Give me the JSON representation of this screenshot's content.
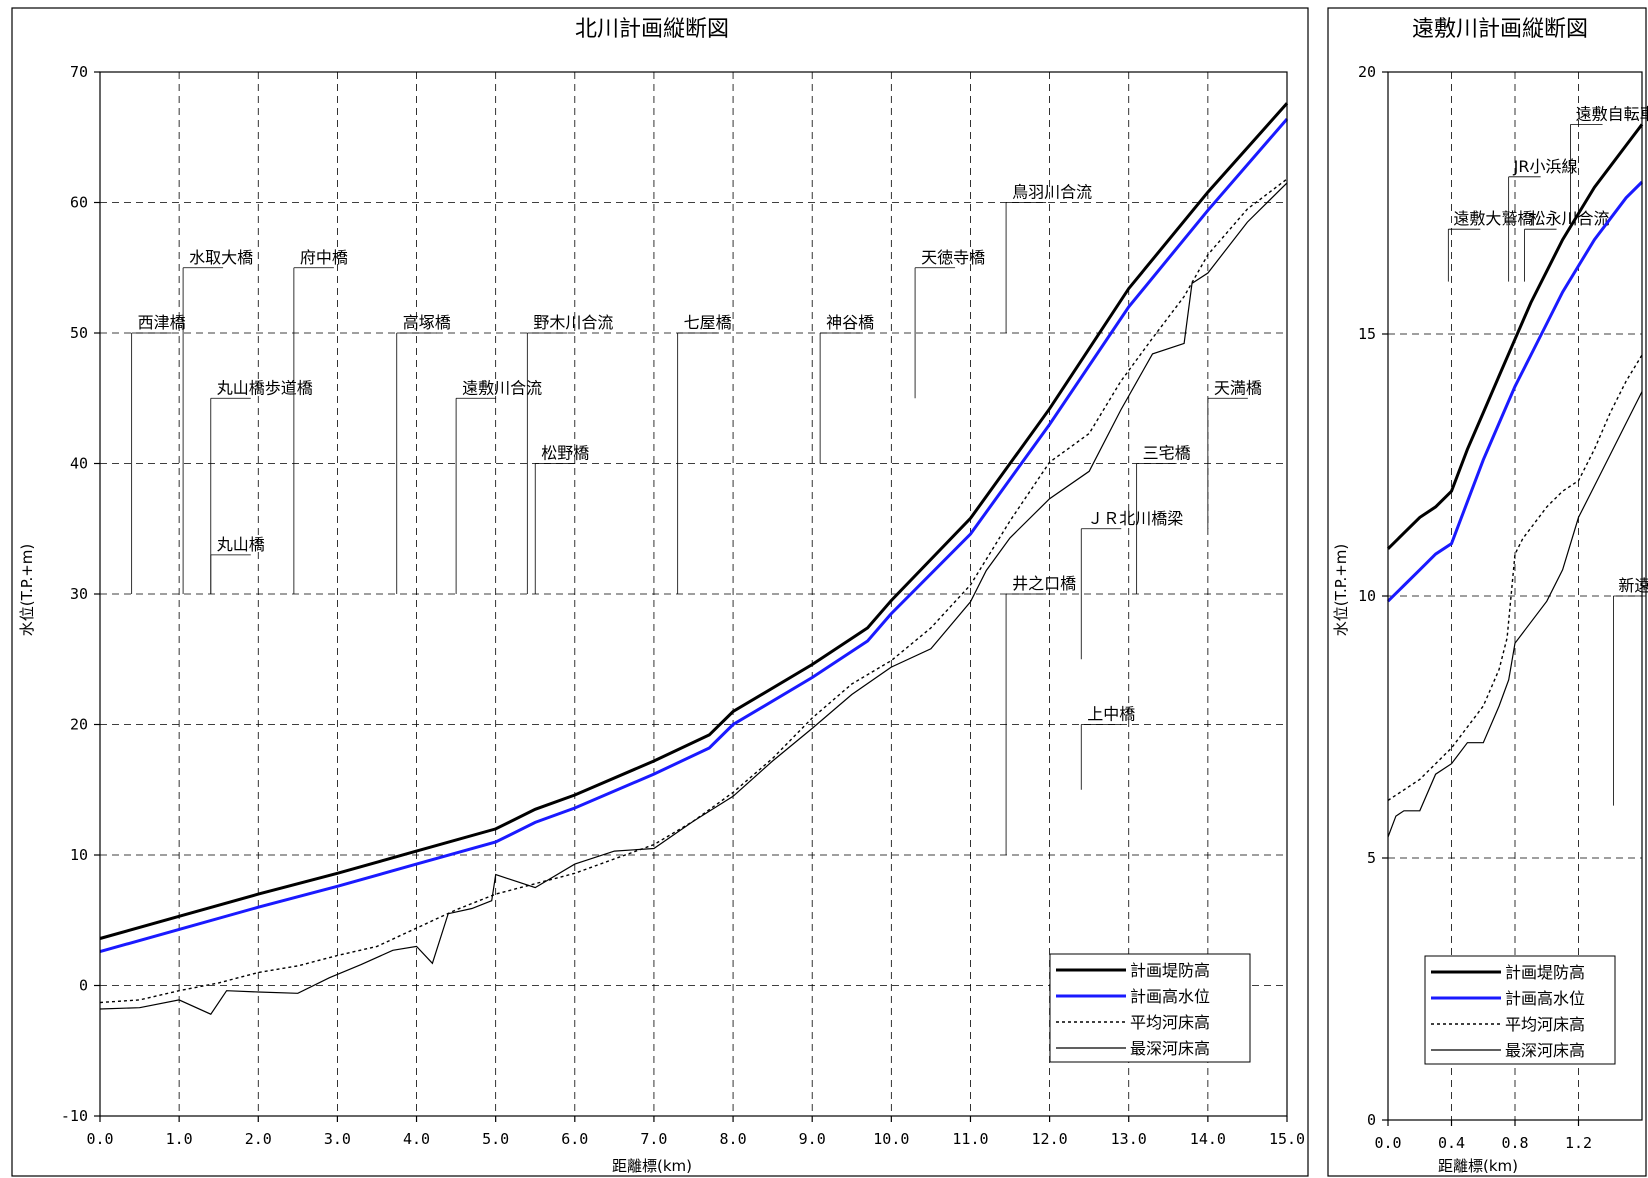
{
  "chart_data": [
    {
      "type": "line",
      "title": "北川計画縦断図",
      "xlabel": "距離標(km)",
      "ylabel": "水位(T.P.+m)",
      "xlim": [
        0,
        15
      ],
      "ylim": [
        -10,
        70
      ],
      "x_ticks": [
        "0.0",
        "1.0",
        "2.0",
        "3.0",
        "4.0",
        "5.0",
        "6.0",
        "7.0",
        "8.0",
        "9.0",
        "10.0",
        "11.0",
        "12.0",
        "13.0",
        "14.0",
        "15.0"
      ],
      "y_ticks": [
        "-10",
        "0",
        "10",
        "20",
        "30",
        "40",
        "50",
        "60",
        "70"
      ],
      "grid": true,
      "legend_position": "bottom-right",
      "series": [
        {
          "name": "計画堤防高",
          "color": "#000000",
          "style": "thick",
          "x": [
            0,
            1,
            2,
            3,
            4,
            5,
            5.5,
            6,
            7,
            7.7,
            8,
            9,
            9.7,
            10,
            11,
            12,
            13,
            14,
            15
          ],
          "y": [
            3.6,
            5.3,
            7.0,
            8.6,
            10.3,
            12.0,
            13.5,
            14.6,
            17.2,
            19.2,
            21.0,
            24.6,
            27.4,
            29.5,
            35.8,
            44.2,
            53.4,
            60.8,
            67.6
          ]
        },
        {
          "name": "計画高水位",
          "color": "#1a1aff",
          "style": "thick",
          "x": [
            0,
            1,
            2,
            3,
            4,
            5,
            5.5,
            6,
            7,
            7.7,
            8,
            9,
            9.7,
            10,
            11,
            12,
            13,
            14,
            15
          ],
          "y": [
            2.6,
            4.3,
            6.0,
            7.6,
            9.3,
            11.0,
            12.5,
            13.6,
            16.2,
            18.2,
            20.0,
            23.6,
            26.4,
            28.5,
            34.6,
            43.0,
            52.0,
            59.4,
            66.4
          ]
        },
        {
          "name": "平均河床高",
          "color": "#000000",
          "style": "dotted",
          "x": [
            0,
            0.5,
            1,
            1.5,
            2,
            2.5,
            3,
            3.5,
            4,
            4.5,
            5,
            5.5,
            6,
            6.5,
            7,
            7.5,
            8,
            8.5,
            9,
            9.5,
            10,
            10.5,
            11,
            11.5,
            12,
            12.5,
            12.9,
            13.3,
            13.7,
            14,
            14.5,
            15
          ],
          "y": [
            -1.3,
            -1.1,
            -0.4,
            0.2,
            1.0,
            1.5,
            2.3,
            3.0,
            4.4,
            5.8,
            7.0,
            7.8,
            8.6,
            9.7,
            10.8,
            12.6,
            14.8,
            17.4,
            20.5,
            23.1,
            24.9,
            27.4,
            30.7,
            35.6,
            40.1,
            42.3,
            46.3,
            49.6,
            52.8,
            56.0,
            59.5,
            61.8
          ]
        },
        {
          "name": "最深河床高",
          "color": "#000000",
          "style": "thin",
          "x": [
            0,
            0.5,
            1,
            1.4,
            1.6,
            2,
            2.5,
            2.9,
            3.3,
            3.7,
            4,
            4.2,
            4.4,
            4.7,
            4.95,
            5,
            5.5,
            6,
            6.5,
            7,
            7.5,
            8,
            8.5,
            9,
            9.5,
            10,
            10.5,
            11,
            11.2,
            11.5,
            12,
            12.5,
            12.9,
            13.3,
            13.7,
            13.8,
            14,
            14.5,
            15
          ],
          "y": [
            -1.8,
            -1.7,
            -1.1,
            -2.2,
            -0.4,
            -0.5,
            -0.6,
            0.6,
            1.6,
            2.7,
            3.0,
            1.7,
            5.5,
            5.9,
            6.5,
            8.5,
            7.5,
            9.3,
            10.3,
            10.5,
            12.6,
            14.5,
            17.2,
            19.7,
            22.3,
            24.4,
            25.8,
            29.4,
            31.8,
            34.3,
            37.3,
            39.4,
            44.1,
            48.4,
            49.2,
            53.8,
            54.6,
            58.5,
            61.5
          ]
        }
      ],
      "annotations": [
        {
          "label": "西津橋",
          "x": 0.4,
          "ylow": 30,
          "ylab": 50
        },
        {
          "label": "水取大橋",
          "x": 1.05,
          "ylow": 30,
          "ylab": 55
        },
        {
          "label": "丸山橋歩道橋",
          "x": 1.4,
          "ylow": 30,
          "ylab": 45
        },
        {
          "label": "丸山橋",
          "x": 1.4,
          "ylow": 30,
          "ylab": 33
        },
        {
          "label": "府中橋",
          "x": 2.45,
          "ylow": 30,
          "ylab": 55
        },
        {
          "label": "高塚橋",
          "x": 3.75,
          "ylow": 30,
          "ylab": 50
        },
        {
          "label": "遠敷川合流",
          "x": 4.5,
          "ylow": 30,
          "ylab": 45
        },
        {
          "label": "野木川合流",
          "x": 5.4,
          "ylow": 30,
          "ylab": 50
        },
        {
          "label": "松野橋",
          "x": 5.5,
          "ylow": 30,
          "ylab": 40
        },
        {
          "label": "七屋橋",
          "x": 7.3,
          "ylow": 30,
          "ylab": 50
        },
        {
          "label": "神谷橋",
          "x": 9.1,
          "ylow": 40,
          "ylab": 50
        },
        {
          "label": "天徳寺橋",
          "x": 10.3,
          "ylow": 45,
          "ylab": 55
        },
        {
          "label": "鳥羽川合流",
          "x": 11.45,
          "ylow": 50,
          "ylab": 60
        },
        {
          "label": "井之口橋",
          "x": 11.45,
          "ylow": 10,
          "ylab": 30
        },
        {
          "label": "上中橋",
          "x": 12.4,
          "ylow": 15,
          "ylab": 20
        },
        {
          "label": "ＪＲ北川橋梁",
          "x": 12.4,
          "ylow": 25,
          "ylab": 35
        },
        {
          "label": "三宅橋",
          "x": 13.1,
          "ylow": 30,
          "ylab": 40
        },
        {
          "label": "天満橋",
          "x": 14.0,
          "ylow": 35,
          "ylab": 45
        }
      ]
    },
    {
      "type": "line",
      "title": "遠敷川計画縦断図",
      "xlabel": "距離標(km)",
      "ylabel": "水位(T.P.+m)",
      "xlim": [
        0,
        1.6
      ],
      "ylim": [
        0,
        20
      ],
      "x_ticks": [
        "0.0",
        "0.4",
        "0.8",
        "1.2"
      ],
      "y_ticks": [
        "0",
        "5",
        "10",
        "15",
        "20"
      ],
      "grid": true,
      "legend_position": "bottom",
      "series": [
        {
          "name": "計画堤防高",
          "color": "#000000",
          "style": "thick",
          "x": [
            0,
            0.1,
            0.2,
            0.3,
            0.4,
            0.5,
            0.6,
            0.7,
            0.8,
            0.9,
            1.0,
            1.1,
            1.2,
            1.3,
            1.4,
            1.5,
            1.6
          ],
          "y": [
            10.9,
            11.2,
            11.5,
            11.7,
            12.0,
            12.8,
            13.5,
            14.2,
            14.9,
            15.6,
            16.2,
            16.8,
            17.3,
            17.8,
            18.2,
            18.6,
            19.0
          ]
        },
        {
          "name": "計画高水位",
          "color": "#1a1aff",
          "style": "thick",
          "x": [
            0,
            0.1,
            0.2,
            0.3,
            0.4,
            0.5,
            0.6,
            0.7,
            0.8,
            0.9,
            1.0,
            1.1,
            1.2,
            1.3,
            1.4,
            1.5,
            1.6
          ],
          "y": [
            9.9,
            10.2,
            10.5,
            10.8,
            11.0,
            11.8,
            12.6,
            13.3,
            14.0,
            14.6,
            15.2,
            15.8,
            16.3,
            16.8,
            17.2,
            17.6,
            17.9
          ]
        },
        {
          "name": "平均河床高",
          "color": "#000000",
          "style": "dotted",
          "x": [
            0,
            0.1,
            0.2,
            0.3,
            0.4,
            0.5,
            0.6,
            0.7,
            0.75,
            0.8,
            0.85,
            0.9,
            1.0,
            1.1,
            1.2,
            1.3,
            1.4,
            1.5,
            1.6
          ],
          "y": [
            6.1,
            6.3,
            6.5,
            6.8,
            7.1,
            7.5,
            7.9,
            8.6,
            9.2,
            10.8,
            11.1,
            11.3,
            11.7,
            12.0,
            12.2,
            12.8,
            13.5,
            14.1,
            14.6
          ]
        },
        {
          "name": "最深河床高",
          "color": "#000000",
          "style": "thin",
          "x": [
            0,
            0.05,
            0.1,
            0.2,
            0.3,
            0.4,
            0.5,
            0.55,
            0.6,
            0.7,
            0.76,
            0.8,
            0.9,
            1.0,
            1.1,
            1.2,
            1.3,
            1.4,
            1.5,
            1.6
          ],
          "y": [
            5.4,
            5.8,
            5.9,
            5.9,
            6.6,
            6.8,
            7.2,
            7.2,
            7.2,
            7.9,
            8.4,
            9.1,
            9.5,
            9.9,
            10.5,
            11.5,
            12.1,
            12.7,
            13.3,
            13.9
          ]
        }
      ],
      "annotations": [
        {
          "label": "遠敷大鷲橋",
          "x": 0.38,
          "ylow": 16,
          "ylab": 17
        },
        {
          "label": "JR小浜線",
          "x": 0.76,
          "ylow": 16,
          "ylab": 18
        },
        {
          "label": "松永川合流",
          "x": 0.86,
          "ylow": 16,
          "ylab": 17
        },
        {
          "label": "遠敷自転車道橋",
          "x": 1.15,
          "ylow": 17,
          "ylab": 19
        },
        {
          "label": "新遠敷橋",
          "x": 1.42,
          "ylow": 6,
          "ylab": 10
        }
      ]
    }
  ]
}
